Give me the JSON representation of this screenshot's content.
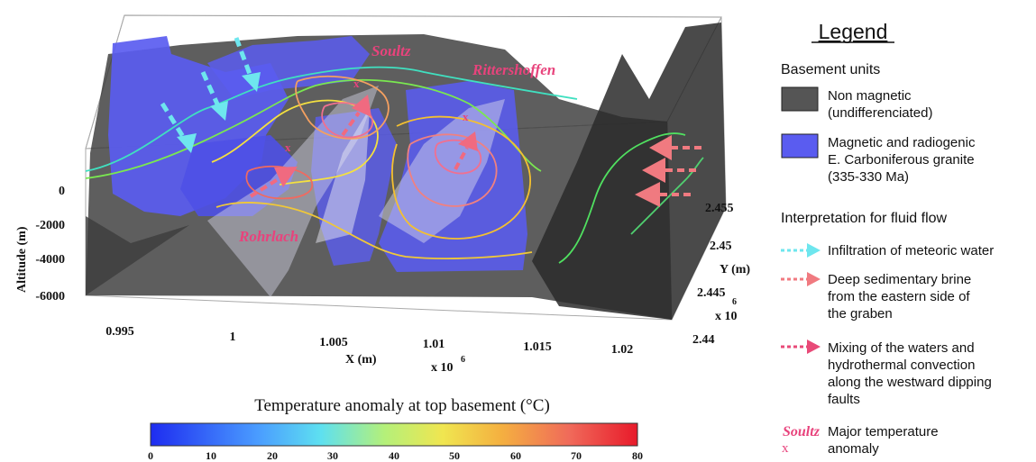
{
  "figure": {
    "site_labels": {
      "soultz": "Soultz",
      "rittershoffen": "Rittershoffen",
      "rohrlach": "Rohrlach"
    },
    "anomaly_marker": "x",
    "axes": {
      "altitude_label": "Altitude (m)",
      "altitude_ticks": [
        "0",
        "-2000",
        "-4000",
        "-6000"
      ],
      "x_label": "X (m)",
      "x_exponent": "x 10",
      "x_exponent_power": "6",
      "x_ticks": [
        "0.995",
        "1",
        "1.005",
        "1.01",
        "1.015",
        "1.02"
      ],
      "y_label": "Y (m)",
      "y_exponent": "x 10",
      "y_exponent_power": "6",
      "y_ticks": [
        "2.455",
        "2.45",
        "2.445",
        "2.44"
      ]
    }
  },
  "colorbar": {
    "title": "Temperature anomaly at top basement (°C)",
    "ticks": [
      "0",
      "10",
      "20",
      "30",
      "40",
      "50",
      "60",
      "70",
      "80"
    ],
    "range": [
      0,
      80
    ]
  },
  "legend": {
    "title": "Legend",
    "basement_heading": "Basement units",
    "units": [
      {
        "label_line1": "Non magnetic",
        "label_line2": "(undifferenciated)",
        "color": "#555555"
      },
      {
        "label_line1": "Magnetic and radiogenic",
        "label_line2": "E. Carboniferous granite",
        "label_line3": "(335-330 Ma)",
        "color": "#5a5cf0"
      }
    ],
    "fluid_heading": "Interpretation for fluid flow",
    "flows": [
      {
        "lines": [
          "Infiltration of meteoric water"
        ],
        "color": "#6ee6ee"
      },
      {
        "lines": [
          "Deep sedimentary brine",
          "from the eastern side of",
          "the graben"
        ],
        "color": "#f07a80"
      },
      {
        "lines": [
          "Mixing of the waters and",
          "hydrothermal convection",
          "along the westward dipping",
          "faults"
        ],
        "color": "#e84a78"
      }
    ],
    "anomaly_site": "Soultz",
    "anomaly_marker": "x",
    "anomaly_lines": [
      "Major temperature",
      "anomaly"
    ]
  },
  "colors": {
    "granite": "#5a5cf0",
    "basement": "#4a4a4a",
    "meteoric": "#6ee6ee",
    "brine": "#f07a80",
    "site_label": "#e8437c"
  }
}
